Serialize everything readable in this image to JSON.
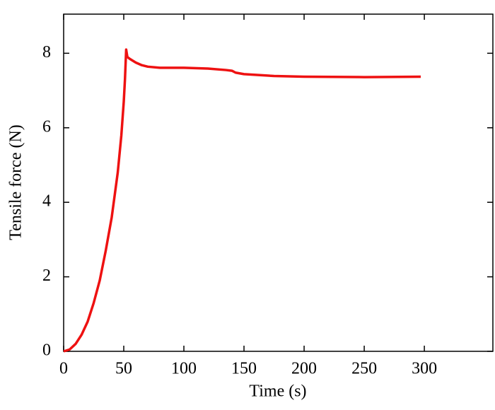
{
  "chart_data": {
    "type": "line",
    "x_label": "Time (s)",
    "y_label": "Tensile force (N)",
    "x": [
      0,
      5,
      10,
      15,
      20,
      25,
      30,
      35,
      40,
      45,
      48,
      50,
      51,
      52,
      53,
      55,
      60,
      65,
      70,
      80,
      100,
      120,
      135,
      140,
      143,
      150,
      175,
      200,
      250,
      297
    ],
    "series": [
      {
        "name": "Tensile force",
        "color": "#ee1111",
        "values": [
          0,
          0.05,
          0.2,
          0.45,
          0.8,
          1.3,
          1.9,
          2.7,
          3.6,
          4.8,
          5.8,
          6.7,
          7.3,
          8.1,
          7.9,
          7.85,
          7.75,
          7.68,
          7.64,
          7.61,
          7.61,
          7.59,
          7.55,
          7.53,
          7.48,
          7.44,
          7.39,
          7.37,
          7.36,
          7.37
        ]
      }
    ],
    "xlim": [
      0,
      357
    ],
    "ylim": [
      0,
      9.05
    ],
    "xticks": [
      0,
      50,
      100,
      150,
      200,
      250,
      300
    ],
    "yticks": [
      0,
      2,
      4,
      6,
      8
    ]
  }
}
